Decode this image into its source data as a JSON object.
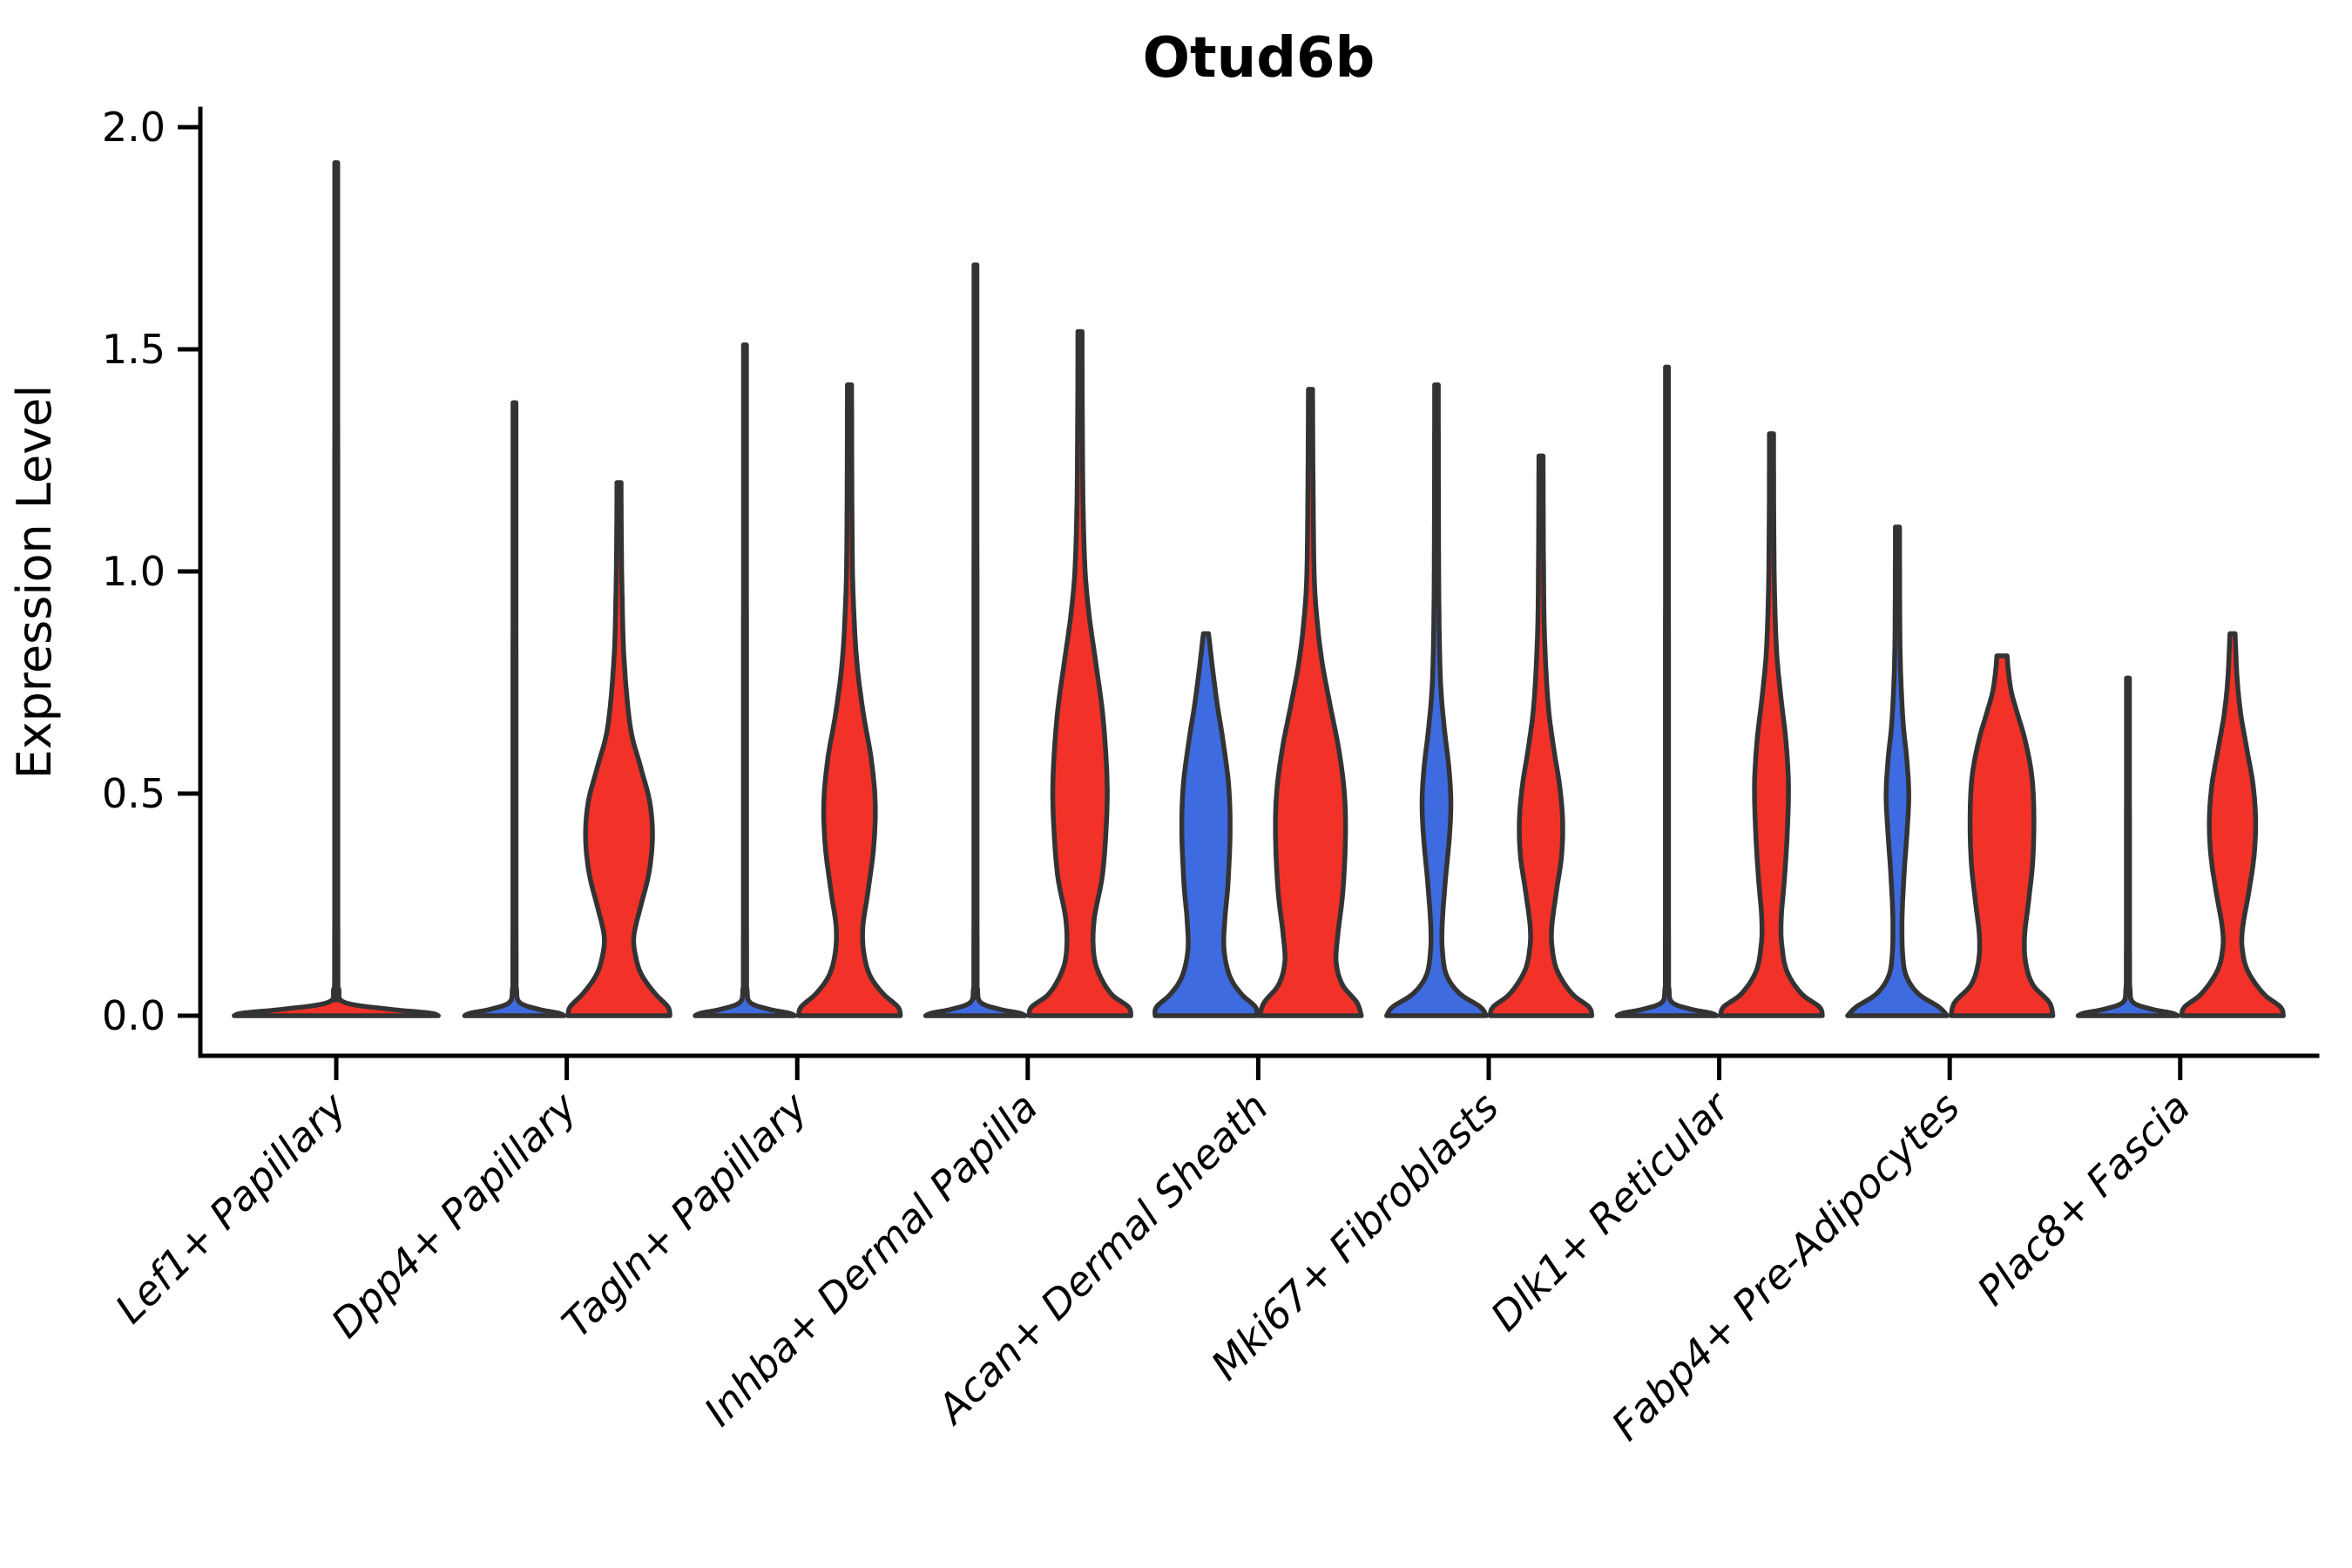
{
  "title": "Otud6b",
  "colors": {
    "red": "#F23128",
    "blue": "#3E6BE0",
    "outline": "#333333",
    "axis": "#000000",
    "background": "#FFFFFF"
  },
  "y_axis": {
    "label": "Expression Level",
    "tick_labels": [
      "2.0",
      "1.5",
      "1.0",
      "0.5",
      "0.0"
    ],
    "tick_values": [
      2.0,
      1.5,
      1.0,
      0.5,
      0.0
    ]
  },
  "x_axis": {
    "tick_labels": [
      "Lef1+ Papillary",
      "Dpp4+ Papillary",
      "Tagln+ Papillary",
      "Inhba+ Dermal Papilla",
      "Acan+ Dermal Sheath",
      "Mki67+ Fibroblasts",
      "Dlk1+ Reticular",
      "Fabp4+ Pre-Adipocytes",
      "Plac8+ Fascia"
    ],
    "rotation_degrees": 45
  },
  "chart_data": {
    "type": "violin",
    "title": "Otud6b",
    "xlabel": "",
    "ylabel": "Expression Level",
    "ylim": [
      0,
      2.0
    ],
    "y_ticks": [
      0.0,
      0.5,
      1.0,
      1.5,
      2.0
    ],
    "grid": false,
    "legend_position": "none",
    "categories": [
      "Lef1+ Papillary",
      "Dpp4+ Papillary",
      "Tagln+ Papillary",
      "Inhba+ Dermal Papilla",
      "Acan+ Dermal Sheath",
      "Mki67+ Fibroblasts",
      "Dlk1+ Reticular",
      "Fabp4+ Pre-Adipocytes",
      "Plac8+ Fascia"
    ],
    "split_groups": [
      "blue",
      "red"
    ],
    "violins": [
      {
        "category": "Lef1+ Papillary",
        "split": "single",
        "color": "red",
        "max_expression": 1.92,
        "bulk_at": 0.0,
        "profile": [
          [
            0,
            0.985
          ],
          [
            0.006,
            0.9
          ],
          [
            0.015,
            0.5
          ],
          [
            0.03,
            0.08
          ],
          [
            0.06,
            0.025
          ],
          [
            0.12,
            0.016
          ],
          [
            1.0,
            0.015
          ],
          [
            1.92,
            0.014
          ]
        ]
      },
      {
        "category": "Dpp4+ Papillary",
        "split": "blue",
        "color": "blue",
        "max_expression": 1.38,
        "bulk_at": 0.0,
        "profile": [
          [
            0,
            0.97
          ],
          [
            0.006,
            0.85
          ],
          [
            0.015,
            0.45
          ],
          [
            0.03,
            0.1
          ],
          [
            0.06,
            0.04
          ],
          [
            0.12,
            0.032
          ],
          [
            0.76,
            0.03
          ],
          [
            1.38,
            0.028
          ]
        ]
      },
      {
        "category": "Dpp4+ Papillary",
        "split": "red",
        "color": "red",
        "max_expression": 1.2,
        "bulk_at": 0.45,
        "profile": [
          [
            0,
            0.99
          ],
          [
            0.02,
            0.95
          ],
          [
            0.05,
            0.7
          ],
          [
            0.09,
            0.45
          ],
          [
            0.13,
            0.33
          ],
          [
            0.18,
            0.29
          ],
          [
            0.25,
            0.43
          ],
          [
            0.32,
            0.58
          ],
          [
            0.4,
            0.65
          ],
          [
            0.48,
            0.6
          ],
          [
            0.56,
            0.42
          ],
          [
            0.65,
            0.22
          ],
          [
            0.8,
            0.1
          ],
          [
            0.95,
            0.06
          ],
          [
            1.08,
            0.045
          ],
          [
            1.2,
            0.04
          ]
        ]
      },
      {
        "category": "Tagln+ Papillary",
        "split": "blue",
        "color": "blue",
        "max_expression": 1.51,
        "bulk_at": 0.0,
        "profile": [
          [
            0,
            0.97
          ],
          [
            0.006,
            0.85
          ],
          [
            0.015,
            0.45
          ],
          [
            0.03,
            0.1
          ],
          [
            0.06,
            0.04
          ],
          [
            0.12,
            0.032
          ],
          [
            0.83,
            0.03
          ],
          [
            1.51,
            0.028
          ]
        ]
      },
      {
        "category": "Tagln+ Papillary",
        "split": "red",
        "color": "red",
        "max_expression": 1.42,
        "bulk_at": 0.48,
        "profile": [
          [
            0,
            0.99
          ],
          [
            0.02,
            0.94
          ],
          [
            0.05,
            0.65
          ],
          [
            0.09,
            0.4
          ],
          [
            0.14,
            0.28
          ],
          [
            0.2,
            0.26
          ],
          [
            0.28,
            0.36
          ],
          [
            0.38,
            0.47
          ],
          [
            0.48,
            0.5
          ],
          [
            0.58,
            0.42
          ],
          [
            0.68,
            0.27
          ],
          [
            0.8,
            0.14
          ],
          [
            0.95,
            0.07
          ],
          [
            1.1,
            0.05
          ],
          [
            1.42,
            0.04
          ]
        ]
      },
      {
        "category": "Inhba+ Dermal Papilla",
        "split": "blue",
        "color": "blue",
        "max_expression": 1.69,
        "bulk_at": 0.0,
        "profile": [
          [
            0,
            0.97
          ],
          [
            0.006,
            0.85
          ],
          [
            0.015,
            0.45
          ],
          [
            0.03,
            0.1
          ],
          [
            0.06,
            0.04
          ],
          [
            0.12,
            0.032
          ],
          [
            0.93,
            0.03
          ],
          [
            1.69,
            0.028
          ]
        ]
      },
      {
        "category": "Inhba+ Dermal Papilla",
        "split": "red",
        "color": "red",
        "max_expression": 1.54,
        "bulk_at": 0.5,
        "profile": [
          [
            0,
            0.99
          ],
          [
            0.02,
            0.94
          ],
          [
            0.05,
            0.6
          ],
          [
            0.1,
            0.35
          ],
          [
            0.15,
            0.26
          ],
          [
            0.22,
            0.28
          ],
          [
            0.32,
            0.44
          ],
          [
            0.45,
            0.52
          ],
          [
            0.55,
            0.52
          ],
          [
            0.68,
            0.44
          ],
          [
            0.8,
            0.3
          ],
          [
            0.9,
            0.18
          ],
          [
            1.0,
            0.1
          ],
          [
            1.15,
            0.06
          ],
          [
            1.35,
            0.045
          ],
          [
            1.54,
            0.04
          ]
        ]
      },
      {
        "category": "Acan+ Dermal Sheath",
        "split": "blue",
        "color": "blue",
        "max_expression": 0.86,
        "bulk_at": 0.42,
        "profile": [
          [
            0,
            0.99
          ],
          [
            0.02,
            0.96
          ],
          [
            0.05,
            0.68
          ],
          [
            0.09,
            0.46
          ],
          [
            0.15,
            0.35
          ],
          [
            0.22,
            0.37
          ],
          [
            0.3,
            0.43
          ],
          [
            0.42,
            0.47
          ],
          [
            0.52,
            0.44
          ],
          [
            0.62,
            0.33
          ],
          [
            0.7,
            0.22
          ],
          [
            0.78,
            0.13
          ],
          [
            0.83,
            0.08
          ],
          [
            0.86,
            0.05
          ]
        ]
      },
      {
        "category": "Acan+ Dermal Sheath",
        "split": "red",
        "color": "red",
        "max_expression": 1.41,
        "bulk_at": 0.42,
        "profile": [
          [
            0,
            0.99
          ],
          [
            0.03,
            0.9
          ],
          [
            0.07,
            0.62
          ],
          [
            0.12,
            0.5
          ],
          [
            0.18,
            0.53
          ],
          [
            0.28,
            0.63
          ],
          [
            0.4,
            0.68
          ],
          [
            0.5,
            0.66
          ],
          [
            0.6,
            0.55
          ],
          [
            0.7,
            0.38
          ],
          [
            0.8,
            0.22
          ],
          [
            0.9,
            0.12
          ],
          [
            1.0,
            0.07
          ],
          [
            1.2,
            0.05
          ],
          [
            1.41,
            0.04
          ]
        ]
      },
      {
        "category": "Mki67+ Fibroblasts",
        "split": "blue",
        "color": "blue",
        "max_expression": 1.42,
        "bulk_at": 0.48,
        "profile": [
          [
            0,
            0.97
          ],
          [
            0.02,
            0.85
          ],
          [
            0.05,
            0.45
          ],
          [
            0.09,
            0.2
          ],
          [
            0.14,
            0.12
          ],
          [
            0.2,
            0.11
          ],
          [
            0.3,
            0.17
          ],
          [
            0.4,
            0.25
          ],
          [
            0.48,
            0.28
          ],
          [
            0.56,
            0.24
          ],
          [
            0.65,
            0.15
          ],
          [
            0.75,
            0.08
          ],
          [
            0.9,
            0.05
          ],
          [
            1.1,
            0.04
          ],
          [
            1.42,
            0.035
          ]
        ]
      },
      {
        "category": "Mki67+ Fibroblasts",
        "split": "red",
        "color": "red",
        "max_expression": 1.26,
        "bulk_at": 0.44,
        "profile": [
          [
            0,
            0.99
          ],
          [
            0.02,
            0.93
          ],
          [
            0.05,
            0.6
          ],
          [
            0.1,
            0.32
          ],
          [
            0.15,
            0.22
          ],
          [
            0.2,
            0.21
          ],
          [
            0.28,
            0.3
          ],
          [
            0.36,
            0.4
          ],
          [
            0.44,
            0.42
          ],
          [
            0.52,
            0.36
          ],
          [
            0.6,
            0.25
          ],
          [
            0.7,
            0.14
          ],
          [
            0.85,
            0.07
          ],
          [
            1.0,
            0.05
          ],
          [
            1.26,
            0.04
          ]
        ]
      },
      {
        "category": "Dlk1+ Reticular",
        "split": "blue",
        "color": "blue",
        "max_expression": 1.46,
        "bulk_at": 0.0,
        "profile": [
          [
            0,
            0.97
          ],
          [
            0.006,
            0.85
          ],
          [
            0.015,
            0.45
          ],
          [
            0.03,
            0.1
          ],
          [
            0.06,
            0.04
          ],
          [
            0.12,
            0.032
          ],
          [
            0.8,
            0.03
          ],
          [
            1.46,
            0.028
          ]
        ]
      },
      {
        "category": "Dlk1+ Reticular",
        "split": "red",
        "color": "red",
        "max_expression": 1.31,
        "bulk_at": 0.52,
        "profile": [
          [
            0,
            0.99
          ],
          [
            0.02,
            0.93
          ],
          [
            0.05,
            0.58
          ],
          [
            0.1,
            0.3
          ],
          [
            0.16,
            0.2
          ],
          [
            0.22,
            0.19
          ],
          [
            0.32,
            0.26
          ],
          [
            0.42,
            0.31
          ],
          [
            0.52,
            0.33
          ],
          [
            0.62,
            0.28
          ],
          [
            0.72,
            0.18
          ],
          [
            0.82,
            0.1
          ],
          [
            0.95,
            0.06
          ],
          [
            1.1,
            0.045
          ],
          [
            1.31,
            0.04
          ]
        ]
      },
      {
        "category": "Fabp4+ Pre-Adipocytes",
        "split": "blue",
        "color": "blue",
        "max_expression": 1.1,
        "bulk_at": 0.5,
        "profile": [
          [
            0,
            0.97
          ],
          [
            0.02,
            0.8
          ],
          [
            0.05,
            0.4
          ],
          [
            0.09,
            0.17
          ],
          [
            0.14,
            0.1
          ],
          [
            0.22,
            0.09
          ],
          [
            0.32,
            0.13
          ],
          [
            0.42,
            0.19
          ],
          [
            0.5,
            0.22
          ],
          [
            0.58,
            0.18
          ],
          [
            0.66,
            0.11
          ],
          [
            0.78,
            0.06
          ],
          [
            0.9,
            0.045
          ],
          [
            1.1,
            0.04
          ]
        ]
      },
      {
        "category": "Fabp4+ Pre-Adipocytes",
        "split": "red",
        "color": "red",
        "max_expression": 0.81,
        "bulk_at": 0.45,
        "profile": [
          [
            0,
            0.99
          ],
          [
            0.03,
            0.92
          ],
          [
            0.07,
            0.6
          ],
          [
            0.12,
            0.46
          ],
          [
            0.18,
            0.44
          ],
          [
            0.26,
            0.52
          ],
          [
            0.35,
            0.6
          ],
          [
            0.45,
            0.62
          ],
          [
            0.54,
            0.58
          ],
          [
            0.62,
            0.45
          ],
          [
            0.68,
            0.3
          ],
          [
            0.73,
            0.18
          ],
          [
            0.78,
            0.12
          ],
          [
            0.81,
            0.1
          ]
        ]
      },
      {
        "category": "Plac8+ Fascia",
        "split": "blue",
        "color": "blue",
        "max_expression": 0.76,
        "bulk_at": 0.0,
        "profile": [
          [
            0,
            0.97
          ],
          [
            0.006,
            0.85
          ],
          [
            0.015,
            0.45
          ],
          [
            0.03,
            0.1
          ],
          [
            0.06,
            0.04
          ],
          [
            0.12,
            0.032
          ],
          [
            0.42,
            0.03
          ],
          [
            0.76,
            0.028
          ]
        ]
      },
      {
        "category": "Plac8+ Fascia",
        "split": "red",
        "color": "red",
        "max_expression": 0.86,
        "bulk_at": 0.44,
        "profile": [
          [
            0,
            0.99
          ],
          [
            0.02,
            0.93
          ],
          [
            0.05,
            0.6
          ],
          [
            0.1,
            0.3
          ],
          [
            0.15,
            0.19
          ],
          [
            0.2,
            0.2
          ],
          [
            0.28,
            0.32
          ],
          [
            0.36,
            0.42
          ],
          [
            0.44,
            0.45
          ],
          [
            0.52,
            0.4
          ],
          [
            0.6,
            0.28
          ],
          [
            0.68,
            0.16
          ],
          [
            0.76,
            0.09
          ],
          [
            0.86,
            0.05
          ]
        ]
      }
    ]
  }
}
